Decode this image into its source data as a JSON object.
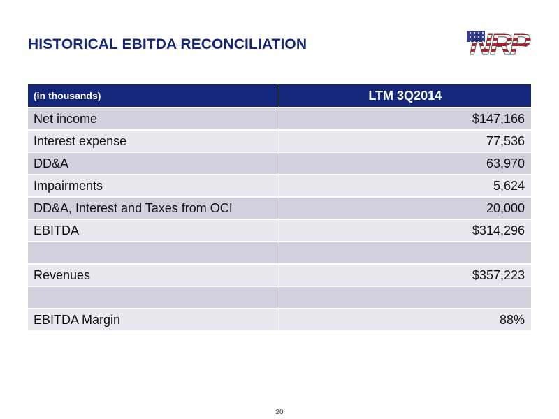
{
  "slide": {
    "title": "HISTORICAL EBITDA RECONCILIATION",
    "page_number": "20",
    "logo_text": "NRP"
  },
  "table": {
    "header_label": "(in thousands)",
    "header_period": "LTM 3Q2014",
    "rows": [
      {
        "label": "Net income",
        "value": "$147,166"
      },
      {
        "label": "Interest expense",
        "value": "77,536"
      },
      {
        "label": "DD&A",
        "value": "63,970"
      },
      {
        "label": "Impairments",
        "value": "5,624"
      },
      {
        "label": "DD&A, Interest and Taxes from OCI",
        "value": "20,000"
      },
      {
        "label": "EBITDA",
        "value": "$314,296"
      },
      {
        "label": "",
        "value": ""
      },
      {
        "label": "Revenues",
        "value": "$357,223"
      },
      {
        "label": "",
        "value": ""
      },
      {
        "label": "EBITDA Margin",
        "value": "88%"
      }
    ]
  },
  "colors": {
    "title": "#142679",
    "header_bg": "#142679",
    "row_dark": "#d0d1dd",
    "row_light": "#e8e8ef",
    "logo_red": "#b0202b",
    "logo_blue": "#1d2c7c"
  }
}
